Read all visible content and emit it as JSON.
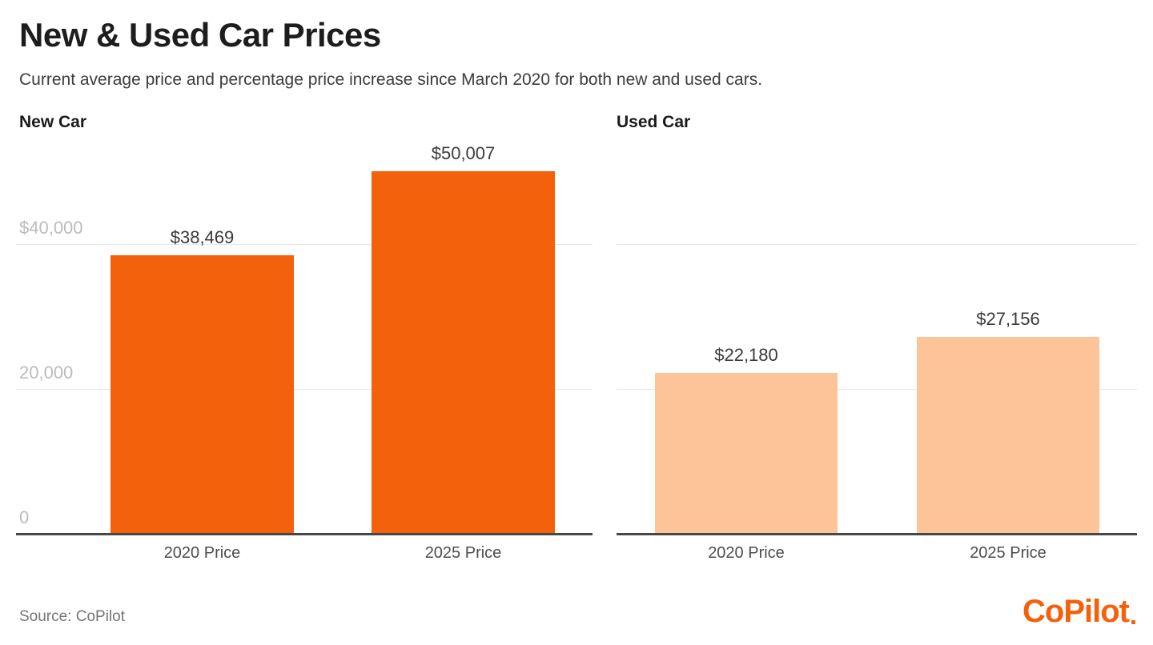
{
  "header": {
    "title": "New & Used Car Prices",
    "subtitle": "Current average price and percentage price increase since March 2020 for both new and used cars."
  },
  "footer": {
    "source": "Source: CoPilot",
    "logo": "CoPilot"
  },
  "colors": {
    "new_car_bar": "#F4610C",
    "used_car_bar": "#FDC498",
    "gridline": "#E7E7E7",
    "axis_baseline": "#474747",
    "ytick_label": "#BCBCBC",
    "value_label": "#3B3B3B",
    "category_label": "#4D4D4D",
    "logo_orange": "#F4610C"
  },
  "chart_data": [
    {
      "type": "bar",
      "title": "New Car",
      "categories": [
        "2020 Price",
        "2025 Price"
      ],
      "values": [
        38469,
        50007
      ],
      "value_labels": [
        "$38,469",
        "$50,007"
      ],
      "bar_color": "#F4610C",
      "ylim": [
        0,
        55250
      ],
      "gridline_values": [
        40000,
        20000
      ],
      "ytick_labels": [
        {
          "value": 40000,
          "label": "$40,000"
        },
        {
          "value": 20000,
          "label": "20,000"
        },
        {
          "value": 0,
          "label": "0"
        }
      ],
      "grid": "horizontal",
      "legend": "none"
    },
    {
      "type": "bar",
      "title": "Used Car",
      "categories": [
        "2020 Price",
        "2025 Price"
      ],
      "values": [
        22180,
        27156
      ],
      "value_labels": [
        "$22,180",
        "$27,156"
      ],
      "bar_color": "#FDC498",
      "ylim": [
        0,
        55250
      ],
      "gridline_values": [
        40000,
        20000
      ],
      "ytick_labels": [],
      "grid": "horizontal",
      "legend": "none"
    }
  ]
}
